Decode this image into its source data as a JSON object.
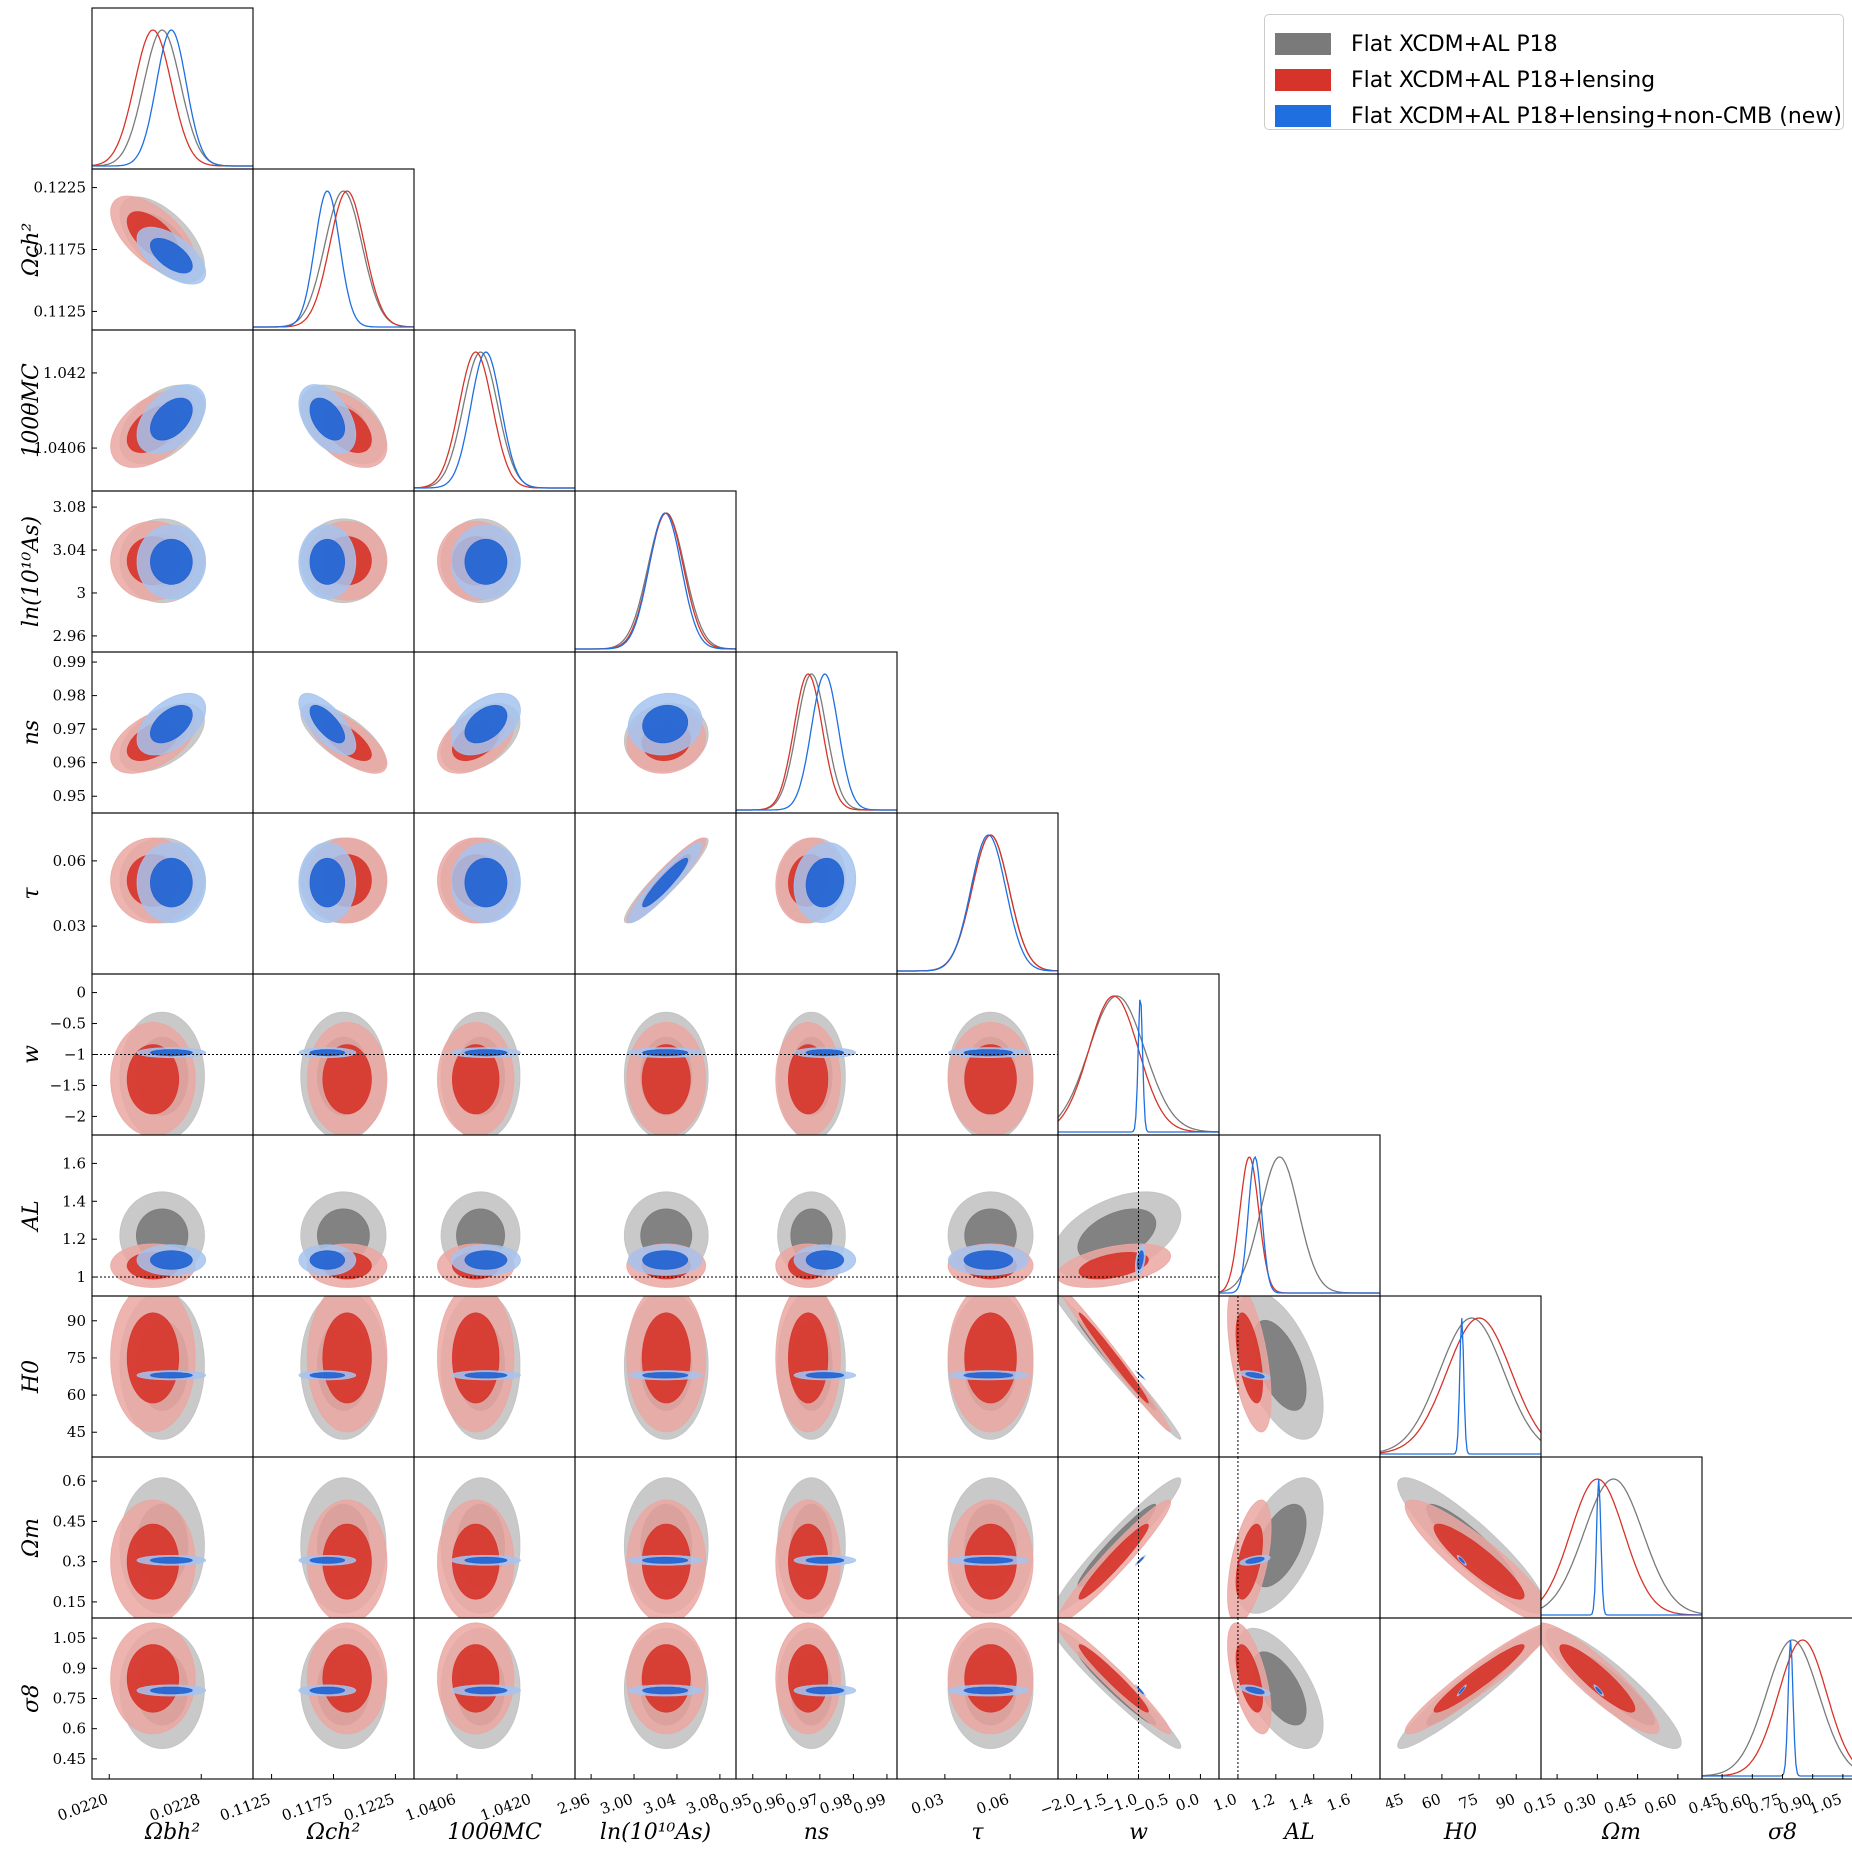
{
  "chart_data": {
    "type": "triangle-corner-plot",
    "parameters": [
      {
        "id": "omb",
        "label": "Ωbh²",
        "range": [
          0.02185,
          0.02325
        ],
        "ticks": [
          0.022,
          0.0228
        ],
        "tick_labels": [
          "0.0220",
          "0.0228"
        ],
        "row_ticks": [],
        "row_tick_labels": []
      },
      {
        "id": "omc",
        "label": "Ωch²",
        "range": [
          0.111,
          0.124
        ],
        "ticks": [
          0.1125,
          0.1175,
          0.1225
        ],
        "tick_labels": [
          "0.1125",
          "0.1175",
          "0.1225"
        ],
        "row_ticks": [
          0.1125,
          0.1175,
          0.1225
        ],
        "row_tick_labels": [
          "0.1125",
          "0.1175",
          "0.1225"
        ]
      },
      {
        "id": "theta",
        "label": "100θMC",
        "range": [
          1.0398,
          1.0428
        ],
        "ticks": [
          1.0406,
          1.042
        ],
        "tick_labels": [
          "1.0406",
          "1.0420"
        ],
        "row_ticks": [
          1.0406,
          1.042
        ],
        "row_tick_labels": [
          "1.0406",
          "1.042"
        ]
      },
      {
        "id": "lnAs",
        "label": "ln(10¹⁰As)",
        "range": [
          2.945,
          3.095
        ],
        "ticks": [
          2.96,
          3.0,
          3.04,
          3.08
        ],
        "tick_labels": [
          "2.96",
          "3.00",
          "3.04",
          "3.08"
        ],
        "row_ticks": [
          2.96,
          3.0,
          3.04,
          3.08
        ],
        "row_tick_labels": [
          "2.96",
          "3",
          "3.04",
          "3.08"
        ]
      },
      {
        "id": "ns",
        "label": "ns",
        "range": [
          0.945,
          0.993
        ],
        "ticks": [
          0.95,
          0.96,
          0.97,
          0.98,
          0.99
        ],
        "tick_labels": [
          "0.95",
          "0.96",
          "0.97",
          "0.98",
          "0.99"
        ],
        "row_ticks": [
          0.95,
          0.96,
          0.97,
          0.98,
          0.99
        ],
        "row_tick_labels": [
          "0.95",
          "0.96",
          "0.97",
          "0.98",
          "0.99"
        ]
      },
      {
        "id": "tau",
        "label": "τ",
        "range": [
          0.008,
          0.082
        ],
        "ticks": [
          0.03,
          0.06
        ],
        "tick_labels": [
          "0.03",
          "0.06"
        ],
        "row_ticks": [
          0.03,
          0.06
        ],
        "row_tick_labels": [
          "0.03",
          "0.06"
        ]
      },
      {
        "id": "w",
        "label": "w",
        "range": [
          -2.3,
          0.3
        ],
        "ticks": [
          -2.0,
          -1.5,
          -1.0,
          -0.5,
          0.0
        ],
        "tick_labels": [
          "−2.0",
          "−1.5",
          "−1.0",
          "−0.5",
          "0.0"
        ],
        "row_ticks": [
          -2,
          -1.5,
          -1,
          -0.5,
          0
        ],
        "row_tick_labels": [
          "−2",
          "−1.5",
          "−1",
          "−0.5",
          "0"
        ]
      },
      {
        "id": "AL",
        "label": "AL",
        "range": [
          0.9,
          1.75
        ],
        "ticks": [
          1.0,
          1.2,
          1.4,
          1.6
        ],
        "tick_labels": [
          "1.0",
          "1.2",
          "1.4",
          "1.6"
        ],
        "row_ticks": [
          1.0,
          1.2,
          1.4,
          1.6
        ],
        "row_tick_labels": [
          "1",
          "1.2",
          "1.4",
          "1.6"
        ]
      },
      {
        "id": "H0",
        "label": "H0",
        "range": [
          35,
          100
        ],
        "ticks": [
          45,
          60,
          75,
          90
        ],
        "tick_labels": [
          "45",
          "60",
          "75",
          "90"
        ],
        "row_ticks": [
          45,
          60,
          75,
          90
        ],
        "row_tick_labels": [
          "45",
          "60",
          "75",
          "90"
        ]
      },
      {
        "id": "Om",
        "label": "Ωm",
        "range": [
          0.09,
          0.69
        ],
        "ticks": [
          0.15,
          0.3,
          0.45,
          0.6
        ],
        "tick_labels": [
          "0.15",
          "0.30",
          "0.45",
          "0.60"
        ],
        "row_ticks": [
          0.15,
          0.3,
          0.45,
          0.6
        ],
        "row_tick_labels": [
          "0.15",
          "0.3",
          "0.45",
          "0.6"
        ]
      },
      {
        "id": "s8",
        "label": "σ8",
        "range": [
          0.35,
          1.15
        ],
        "ticks": [
          0.45,
          0.6,
          0.75,
          0.9,
          1.05
        ],
        "tick_labels": [
          "0.45",
          "0.60",
          "0.75",
          "0.90",
          "1.05"
        ],
        "row_ticks": [
          0.45,
          0.6,
          0.75,
          0.9,
          1.05
        ],
        "row_tick_labels": [
          "0.45",
          "0.6",
          "0.75",
          "0.9",
          "1.05"
        ]
      }
    ],
    "series": [
      {
        "name": "Flat XCDM+AL P18",
        "color_outer": "#c0c0c0",
        "color_inner": "#7a7a7a",
        "line_color": "#7a7a7a",
        "mean": [
          0.02246,
          0.1183,
          1.04104,
          3.03,
          0.9675,
          0.051,
          -1.35,
          1.22,
          72,
          0.36,
          0.8
        ],
        "sigma": [
          0.00016,
          0.0015,
          0.00032,
          0.017,
          0.0044,
          0.0085,
          0.45,
          0.1,
          13,
          0.11,
          0.13
        ]
      },
      {
        "name": "Flat XCDM+AL P18+lensing",
        "color_outer": "#eaa7a2",
        "color_inner": "#d6342a",
        "line_color": "#d6342a",
        "mean": [
          0.02238,
          0.1186,
          1.04095,
          3.03,
          0.9665,
          0.051,
          -1.4,
          1.06,
          75,
          0.3,
          0.85
        ],
        "sigma": [
          0.00016,
          0.0014,
          0.00031,
          0.016,
          0.0042,
          0.0085,
          0.4,
          0.05,
          13,
          0.1,
          0.12
        ]
      },
      {
        "name": "Flat XCDM+AL P18+lensing+non-CMB (new)",
        "color_outer": "#a6c3ef",
        "color_inner": "#1e62d2",
        "line_color": "#1f6fe0",
        "mean": [
          0.02254,
          0.117,
          1.04114,
          3.029,
          0.9715,
          0.05,
          -0.97,
          1.09,
          68.0,
          0.305,
          0.79
        ],
        "sigma": [
          0.00013,
          0.001,
          0.00028,
          0.015,
          0.004,
          0.008,
          0.035,
          0.035,
          0.8,
          0.008,
          0.012
        ]
      }
    ],
    "reference_lines": {
      "w": -1,
      "AL": 1
    },
    "legend_position": "top-right"
  },
  "legend": {
    "items": [
      {
        "label": "Flat XCDM+AL P18",
        "color": "#7a7a7a"
      },
      {
        "label": "Flat XCDM+AL P18+lensing",
        "color": "#d6342a"
      },
      {
        "label": "Flat XCDM+AL P18+lensing+non-CMB (new)",
        "color": "#1f6fe0"
      }
    ]
  }
}
